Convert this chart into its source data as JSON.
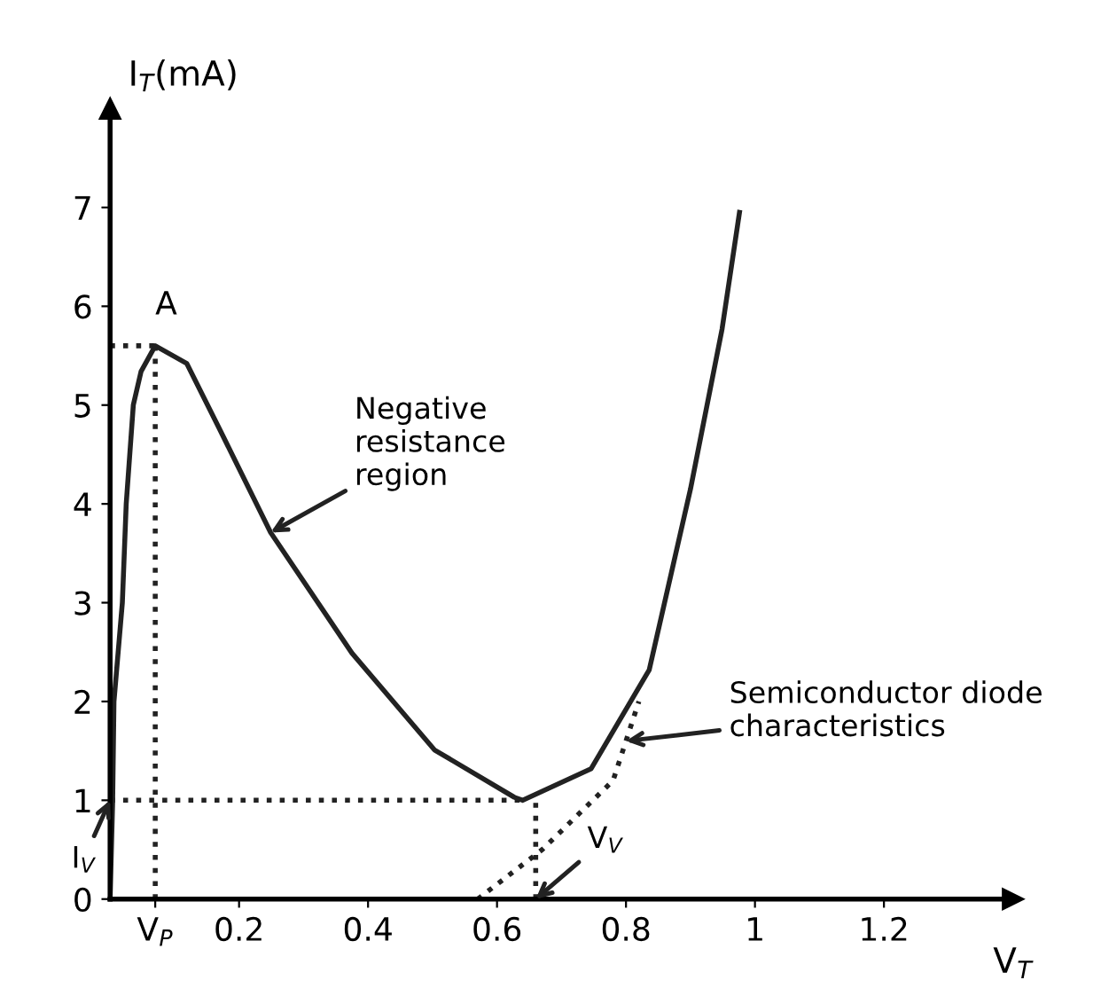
{
  "chart_data": {
    "type": "line",
    "xlabel": "V$_{T}$",
    "ylabel": "I$_{T}$(mA)",
    "xlim": [
      0,
      1.4
    ],
    "ylim": [
      0,
      8
    ],
    "xticks": [
      {
        "value": 0.07,
        "label": "V$_{P}$"
      },
      0.2,
      0.4,
      0.6,
      0.8,
      1,
      1.2
    ],
    "yticks": [
      0,
      1,
      2,
      3,
      4,
      5,
      6,
      7
    ],
    "grid": false,
    "legend": false,
    "marker": "none",
    "series": [
      {
        "color": "#222222",
        "line_style": "solid",
        "x": [
          0,
          0.004,
          0.006,
          0.019,
          0.025,
          0.036,
          0.048,
          0.07,
          0.119,
          0.168,
          0.249,
          0.375,
          0.503,
          0.627,
          0.64,
          0.746,
          0.836,
          0.9,
          0.949,
          0.976
        ],
        "values": [
          0,
          1.0,
          2.0,
          3.0,
          4.0,
          5.0,
          5.34,
          5.6,
          5.42,
          4.78,
          3.71,
          2.49,
          1.51,
          1.03,
          1.0,
          1.32,
          2.32,
          4.15,
          5.77,
          6.95
        ]
      },
      {
        "color": "#222222",
        "line_style": "dotted",
        "x": [
          0.57,
          0.67,
          0.78,
          0.8,
          0.82
        ],
        "values": [
          0,
          0.5,
          1.2,
          1.6,
          2.0
        ]
      },
      {
        "color": "#222222",
        "line_style": "dotted",
        "x": [
          0,
          0.07
        ],
        "values": [
          5.6,
          5.6
        ]
      },
      {
        "color": "#222222",
        "line_style": "dotted",
        "x": [
          0.07,
          0.07
        ],
        "values": [
          0,
          5.6
        ]
      },
      {
        "color": "#222222",
        "line_style": "dotted",
        "x": [
          0,
          0.64
        ],
        "values": [
          1.0,
          1.0
        ]
      },
      {
        "color": "#222222",
        "line_style": "dotted",
        "x": [
          0.66,
          0.66
        ],
        "values": [
          0,
          1.0
        ]
      }
    ],
    "annotations": [
      {
        "text": "A",
        "x": 0.07,
        "y": 5.6
      },
      {
        "text": "Negative\nresistance\nregion",
        "x": 0.249,
        "y": 3.71
      },
      {
        "text": "Semiconductor diode\ncharacteristics",
        "x": 0.8,
        "y": 1.6
      },
      {
        "text": "I$_{V}$",
        "x": 0,
        "y": 1.0
      },
      {
        "text": "V$_{V}$",
        "x": 0.66,
        "y": 0
      }
    ]
  }
}
